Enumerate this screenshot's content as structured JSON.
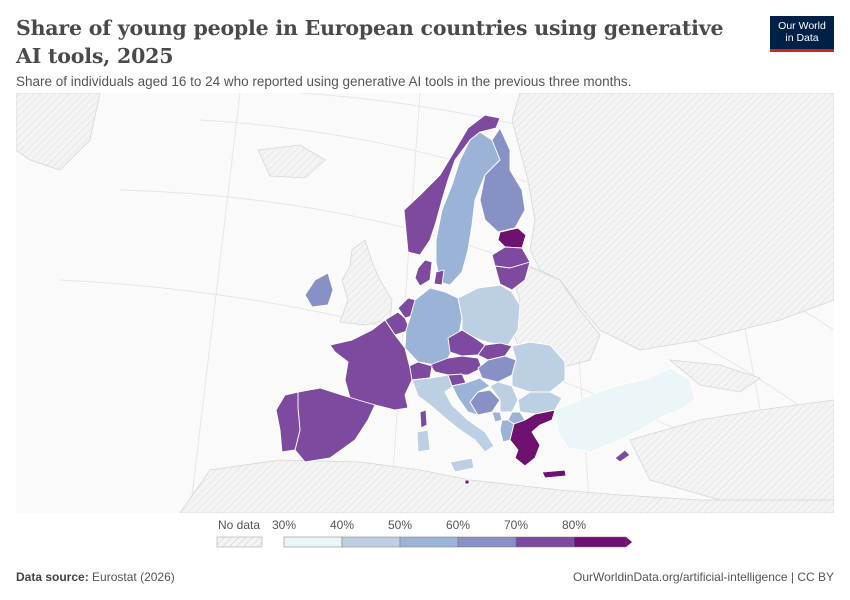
{
  "header": {
    "title": "Share of young people in European countries using generative AI tools, 2025",
    "subtitle": "Share of individuals aged 16 to 24 who reported using generative AI tools in the previous three months.",
    "logo_line1": "Our World",
    "logo_line2": "in Data"
  },
  "legend": {
    "no_data_label": "No data",
    "ticks": [
      "30%",
      "40%",
      "50%",
      "60%",
      "70%",
      "80%"
    ],
    "colors": [
      "#eaf6f8",
      "#bdd0e3",
      "#9ab3d6",
      "#8891c5",
      "#7d4aa0",
      "#6e1170"
    ],
    "no_data_color": "#f2f2f2"
  },
  "map": {
    "countries": [
      {
        "name": "Norway",
        "bin": 4
      },
      {
        "name": "Sweden",
        "bin": 2
      },
      {
        "name": "Finland",
        "bin": 3
      },
      {
        "name": "Estonia",
        "bin": 5
      },
      {
        "name": "Latvia",
        "bin": 4
      },
      {
        "name": "Lithuania",
        "bin": 4
      },
      {
        "name": "Denmark",
        "bin": 4
      },
      {
        "name": "Ireland",
        "bin": 3
      },
      {
        "name": "Netherlands",
        "bin": 4
      },
      {
        "name": "Belgium",
        "bin": 4
      },
      {
        "name": "Germany",
        "bin": 2
      },
      {
        "name": "Poland",
        "bin": 1
      },
      {
        "name": "Czechia",
        "bin": 4
      },
      {
        "name": "Slovakia",
        "bin": 4
      },
      {
        "name": "Austria",
        "bin": 4
      },
      {
        "name": "Switzerland",
        "bin": 4
      },
      {
        "name": "France",
        "bin": 4
      },
      {
        "name": "Spain",
        "bin": 4
      },
      {
        "name": "Portugal",
        "bin": 4
      },
      {
        "name": "Italy",
        "bin": 1
      },
      {
        "name": "Sardinia",
        "bin": 1
      },
      {
        "name": "Corsica",
        "bin": 4
      },
      {
        "name": "Sicily",
        "bin": 1
      },
      {
        "name": "Slovenia",
        "bin": 4
      },
      {
        "name": "Croatia",
        "bin": 2
      },
      {
        "name": "Bosnia and Herzegovina",
        "bin": 3
      },
      {
        "name": "Hungary",
        "bin": 3
      },
      {
        "name": "Romania",
        "bin": 1
      },
      {
        "name": "Serbia",
        "bin": 1
      },
      {
        "name": "Bulgaria",
        "bin": 1
      },
      {
        "name": "Albania",
        "bin": 2
      },
      {
        "name": "North Macedonia",
        "bin": 2
      },
      {
        "name": "Montenegro",
        "bin": 2
      },
      {
        "name": "Greece",
        "bin": 5
      },
      {
        "name": "Crete",
        "bin": 5
      },
      {
        "name": "Cyprus",
        "bin": 4
      },
      {
        "name": "Turkey",
        "bin": 0
      },
      {
        "name": "Malta",
        "bin": 5
      }
    ]
  },
  "footer": {
    "source_label": "Data source:",
    "source_value": "Eurostat (2026)",
    "credit": "OurWorldinData.org/artificial-intelligence | CC BY"
  }
}
